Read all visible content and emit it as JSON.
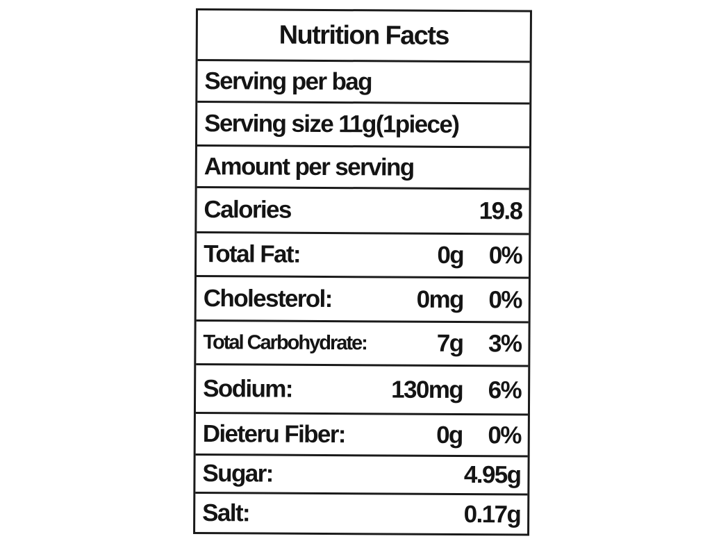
{
  "title": "Nutrition Facts",
  "rows": [
    {
      "label": "Serving per bag"
    },
    {
      "label": "Serving size 11g(1piece)"
    },
    {
      "label": "Amount per serving"
    },
    {
      "label": "Calories",
      "amount": "19.8"
    },
    {
      "label": "Total Fat:",
      "amount": "0g",
      "percent": "0%"
    },
    {
      "label": "Cholesterol:",
      "amount": "0mg",
      "percent": "0%"
    },
    {
      "label": "Total Carbohydrate:",
      "amount": "7g",
      "percent": "3%"
    },
    {
      "label": "Sodium:",
      "amount": "130mg",
      "percent": "6%"
    },
    {
      "label": "Dieteru Fiber:",
      "amount": "0g",
      "percent": "0%"
    },
    {
      "label": "Sugar:",
      "amount": "4.95g"
    },
    {
      "label": "Salt:",
      "amount": "0.17g"
    }
  ]
}
